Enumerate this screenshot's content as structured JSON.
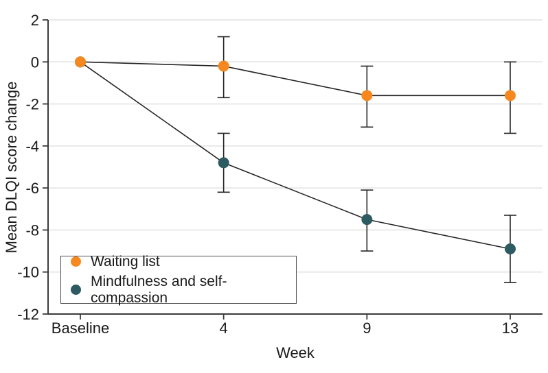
{
  "chart_data": {
    "type": "line",
    "title": "",
    "xlabel": "Week",
    "ylabel": "Mean DLQI score change",
    "categories": [
      "Baseline",
      "4",
      "9",
      "13"
    ],
    "ylim": [
      -12,
      2
    ],
    "yticks": [
      2,
      0,
      -2,
      -4,
      -6,
      -8,
      -10,
      -12
    ],
    "grid": true,
    "legend_position": "lower-left",
    "colors": {
      "axis": "#3a3a3a",
      "grid": "#e2e2e2",
      "line": "#262626",
      "text": "#1a1a1a"
    },
    "series": [
      {
        "name": "Waiting list",
        "color": "#f6881f",
        "values": [
          0,
          -0.2,
          -1.6,
          -1.6
        ],
        "ci_high": [
          null,
          1.2,
          -0.2,
          0.0
        ],
        "ci_low": [
          null,
          -1.7,
          -3.1,
          -3.4
        ]
      },
      {
        "name": "Mindfulness and self-compassion",
        "color": "#2e5a61",
        "values": [
          0,
          -4.8,
          -7.5,
          -8.9
        ],
        "ci_high": [
          null,
          -3.4,
          -6.1,
          -7.3
        ],
        "ci_low": [
          null,
          -6.2,
          -9.0,
          -10.5
        ]
      }
    ]
  }
}
